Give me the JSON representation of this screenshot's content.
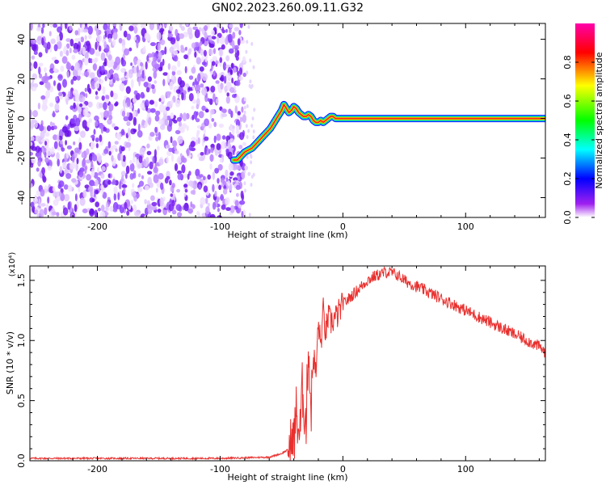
{
  "title": "GN02.2023.260.09.11.G32",
  "chart_data": [
    {
      "type": "heatmap",
      "xlabel": "Height of straight line (km)",
      "ylabel": "Frequency (Hz)",
      "xlim": [
        -255,
        165
      ],
      "ylim": [
        -50,
        48
      ],
      "xticks": [
        -200,
        -100,
        0,
        100
      ],
      "yticks": [
        -40,
        -20,
        0,
        20,
        40
      ],
      "grid": false,
      "noise_region_x": [
        -255,
        -80
      ],
      "signal_trace": {
        "x": [
          -89,
          -86,
          -83,
          -80,
          -77,
          -74,
          -71,
          -68,
          -65,
          -62,
          -59,
          -56,
          -53,
          -50,
          -48,
          -46,
          -44,
          -42,
          -40,
          -38,
          -36,
          -34,
          -32,
          -30,
          -28,
          -26,
          -24,
          -22,
          -20,
          -18,
          -16,
          -14,
          -12,
          -10,
          -8,
          -6,
          -4,
          -2,
          0,
          20,
          40,
          60,
          80,
          100,
          120,
          140,
          165
        ],
        "y": [
          -21,
          -21,
          -19,
          -17,
          -16,
          -15,
          -13,
          -11,
          -9,
          -7,
          -5,
          -2,
          1,
          4,
          7,
          5,
          3,
          4,
          6,
          5,
          3,
          2,
          1,
          1,
          2,
          1,
          -1,
          -2,
          -2,
          -1,
          -2,
          -1,
          0,
          1,
          1,
          0,
          0,
          0,
          0,
          0,
          0,
          0,
          0,
          0,
          0,
          0,
          0
        ]
      },
      "colorbar": {
        "label": "Normalized spectral amplitude",
        "range": [
          0,
          1
        ],
        "ticks": [
          "0.0",
          "0.2",
          "0.4",
          "0.6",
          "0.8"
        ],
        "colors": [
          "#ffffff",
          "#a020f0",
          "#0000ff",
          "#00ffff",
          "#00ff00",
          "#ffff00",
          "#ff0000",
          "#ff00aa"
        ]
      }
    },
    {
      "type": "line",
      "xlabel": "Height of straight line (km)",
      "ylabel": "SNR (10 * v/v)",
      "yscale_label": "(x10⁴)",
      "xlim": [
        -255,
        165
      ],
      "ylim": [
        0,
        1.62
      ],
      "xticks": [
        -200,
        -100,
        0,
        100
      ],
      "yticks": [
        "0.0",
        "0.5",
        "1.0",
        "1.5"
      ],
      "grid": false,
      "series": [
        {
          "color": "#e8302e",
          "x": [
            -255,
            -200,
            -150,
            -100,
            -60,
            -50,
            -45,
            -40,
            -38,
            -35,
            -33,
            -30,
            -28,
            -26,
            -24,
            -22,
            -20,
            -18,
            -16,
            -14,
            -12,
            -10,
            -5,
            0,
            5,
            10,
            15,
            20,
            25,
            30,
            35,
            40,
            45,
            50,
            60,
            70,
            80,
            90,
            100,
            110,
            120,
            130,
            140,
            150,
            160,
            165
          ],
          "y": [
            0.02,
            0.02,
            0.02,
            0.02,
            0.03,
            0.06,
            0.09,
            0.15,
            0.4,
            0.2,
            0.6,
            0.3,
            1.0,
            0.4,
            0.9,
            0.7,
            1.15,
            0.95,
            1.25,
            1.05,
            1.2,
            1.15,
            1.2,
            1.3,
            1.35,
            1.4,
            1.45,
            1.5,
            1.53,
            1.55,
            1.57,
            1.56,
            1.54,
            1.5,
            1.45,
            1.4,
            1.35,
            1.3,
            1.25,
            1.2,
            1.15,
            1.1,
            1.05,
            1.0,
            0.95,
            0.9
          ]
        }
      ]
    }
  ]
}
